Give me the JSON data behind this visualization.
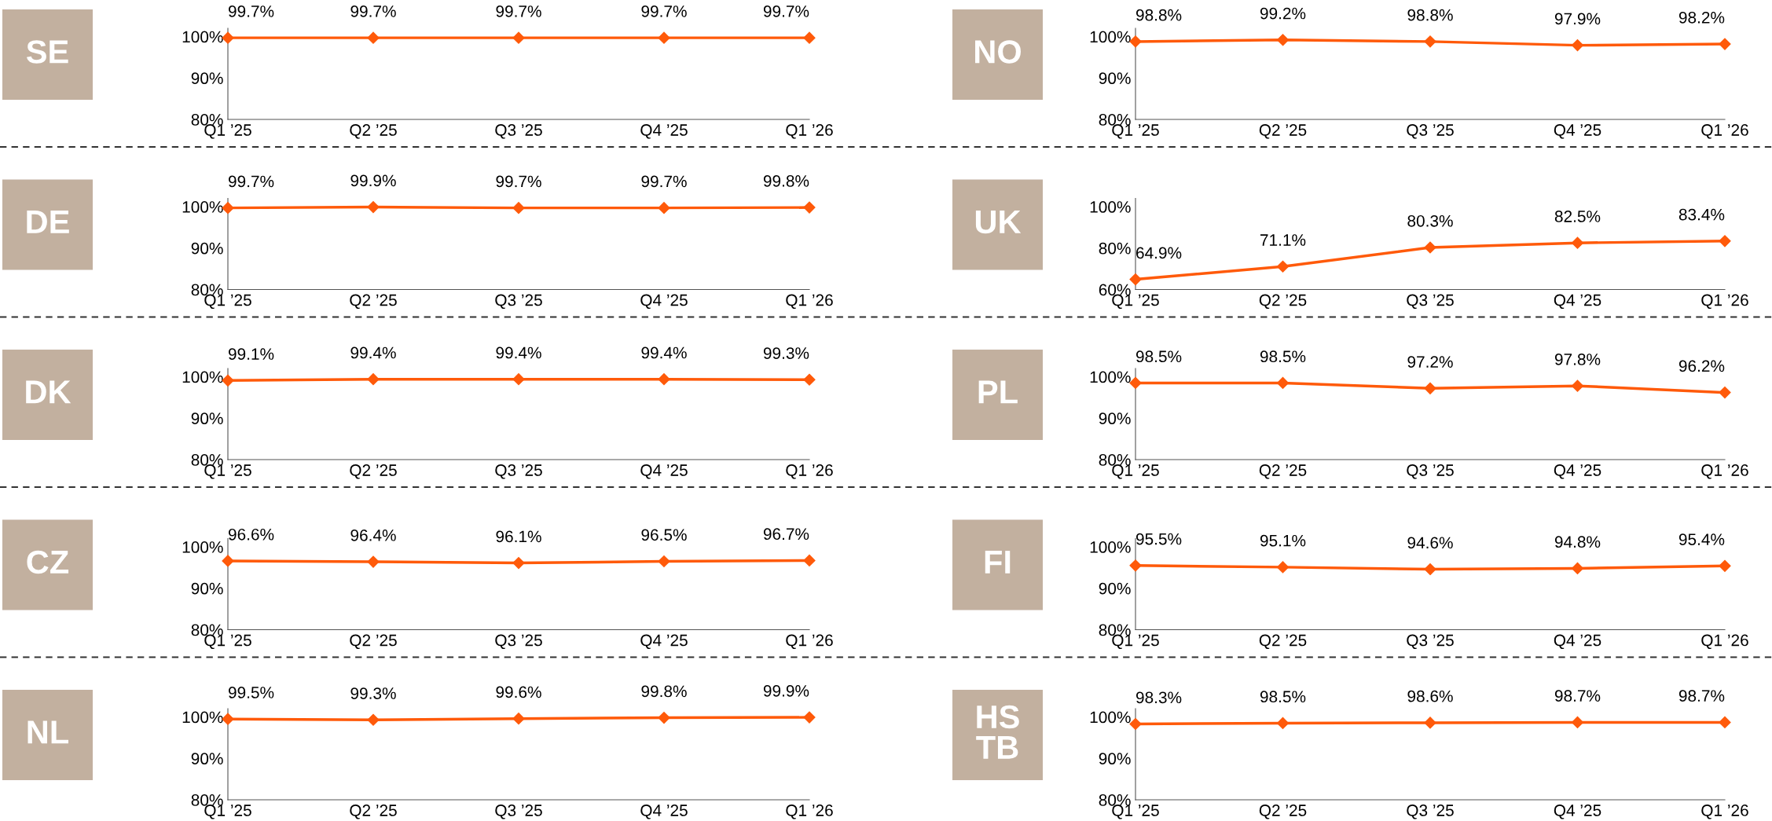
{
  "chart_data": [
    {
      "type": "line",
      "title": "SE",
      "categories": [
        "Q1 ’25",
        "Q2 ’25",
        "Q3 ’25",
        "Q4 ’25",
        "Q1 ’26"
      ],
      "series": [
        {
          "color": "#ff5a0a",
          "values": [
            99.7,
            99.7,
            99.7,
            99.7,
            99.7
          ],
          "value_labels": [
            "99.7%",
            "99.7%",
            "99.7%",
            "99.7%",
            "99.7%"
          ]
        }
      ],
      "ylim": [
        80,
        102
      ],
      "yticks": [
        {
          "value": 80,
          "label": "80%"
        },
        {
          "value": 90,
          "label": "90%"
        },
        {
          "value": 100,
          "label": "100%"
        }
      ],
      "marker": "diamond",
      "grid": false
    },
    {
      "type": "line",
      "title": "NO",
      "categories": [
        "Q1 ’25",
        "Q2 ’25",
        "Q3 ’25",
        "Q4 ’25",
        "Q1 ’26"
      ],
      "series": [
        {
          "color": "#ff5a0a",
          "values": [
            98.8,
            99.2,
            98.8,
            97.9,
            98.2
          ],
          "value_labels": [
            "98.8%",
            "99.2%",
            "98.8%",
            "97.9%",
            "98.2%"
          ]
        }
      ],
      "ylim": [
        80,
        102
      ],
      "yticks": [
        {
          "value": 80,
          "label": "80%"
        },
        {
          "value": 90,
          "label": "90%"
        },
        {
          "value": 100,
          "label": "100%"
        }
      ],
      "marker": "diamond",
      "grid": false
    },
    {
      "type": "line",
      "title": "DE",
      "categories": [
        "Q1 ’25",
        "Q2 ’25",
        "Q3 ’25",
        "Q4 ’25",
        "Q1 ’26"
      ],
      "series": [
        {
          "color": "#ff5a0a",
          "values": [
            99.7,
            99.9,
            99.7,
            99.7,
            99.8
          ],
          "value_labels": [
            "99.7%",
            "99.9%",
            "99.7%",
            "99.7%",
            "99.8%"
          ]
        }
      ],
      "ylim": [
        80,
        102
      ],
      "yticks": [
        {
          "value": 80,
          "label": "80%"
        },
        {
          "value": 90,
          "label": "90%"
        },
        {
          "value": 100,
          "label": "100%"
        }
      ],
      "marker": "diamond",
      "grid": false
    },
    {
      "type": "line",
      "title": "UK",
      "categories": [
        "Q1 ’25",
        "Q2 ’25",
        "Q3 ’25",
        "Q4 ’25",
        "Q1 ’26"
      ],
      "series": [
        {
          "color": "#ff5a0a",
          "values": [
            64.9,
            71.1,
            80.3,
            82.5,
            83.4
          ],
          "value_labels": [
            "64.9%",
            "71.1%",
            "80.3%",
            "82.5%",
            "83.4%"
          ]
        }
      ],
      "ylim": [
        60,
        104
      ],
      "yticks": [
        {
          "value": 60,
          "label": "60%"
        },
        {
          "value": 80,
          "label": "80%"
        },
        {
          "value": 100,
          "label": "100%"
        }
      ],
      "marker": "diamond",
      "grid": false
    },
    {
      "type": "line",
      "title": "DK",
      "categories": [
        "Q1 ’25",
        "Q2 ’25",
        "Q3 ’25",
        "Q4 ’25",
        "Q1 ’26"
      ],
      "series": [
        {
          "color": "#ff5a0a",
          "values": [
            99.1,
            99.4,
            99.4,
            99.4,
            99.3
          ],
          "value_labels": [
            "99.1%",
            "99.4%",
            "99.4%",
            "99.4%",
            "99.3%"
          ]
        }
      ],
      "ylim": [
        80,
        102
      ],
      "yticks": [
        {
          "value": 80,
          "label": "80%"
        },
        {
          "value": 90,
          "label": "90%"
        },
        {
          "value": 100,
          "label": "100%"
        }
      ],
      "marker": "diamond",
      "grid": false
    },
    {
      "type": "line",
      "title": "PL",
      "categories": [
        "Q1 ’25",
        "Q2 ’25",
        "Q3 ’25",
        "Q4 ’25",
        "Q1 ’26"
      ],
      "series": [
        {
          "color": "#ff5a0a",
          "values": [
            98.5,
            98.5,
            97.2,
            97.8,
            96.2
          ],
          "value_labels": [
            "98.5%",
            "98.5%",
            "97.2%",
            "97.8%",
            "96.2%"
          ]
        }
      ],
      "ylim": [
        80,
        102
      ],
      "yticks": [
        {
          "value": 80,
          "label": "80%"
        },
        {
          "value": 90,
          "label": "90%"
        },
        {
          "value": 100,
          "label": "100%"
        }
      ],
      "marker": "diamond",
      "grid": false
    },
    {
      "type": "line",
      "title": "CZ",
      "categories": [
        "Q1 ’25",
        "Q2 ’25",
        "Q3 ’25",
        "Q4 ’25",
        "Q1 ’26"
      ],
      "series": [
        {
          "color": "#ff5a0a",
          "values": [
            96.6,
            96.4,
            96.1,
            96.5,
            96.7
          ],
          "value_labels": [
            "96.6%",
            "96.4%",
            "96.1%",
            "96.5%",
            "96.7%"
          ]
        }
      ],
      "ylim": [
        80,
        102
      ],
      "yticks": [
        {
          "value": 80,
          "label": "80%"
        },
        {
          "value": 90,
          "label": "90%"
        },
        {
          "value": 100,
          "label": "100%"
        }
      ],
      "marker": "diamond",
      "grid": false
    },
    {
      "type": "line",
      "title": "FI",
      "categories": [
        "Q1 ’25",
        "Q2 ’25",
        "Q3 ’25",
        "Q4 ’25",
        "Q1 ’26"
      ],
      "series": [
        {
          "color": "#ff5a0a",
          "values": [
            95.5,
            95.1,
            94.6,
            94.8,
            95.4
          ],
          "value_labels": [
            "95.5%",
            "95.1%",
            "94.6%",
            "94.8%",
            "95.4%"
          ]
        }
      ],
      "ylim": [
        80,
        102
      ],
      "yticks": [
        {
          "value": 80,
          "label": "80%"
        },
        {
          "value": 90,
          "label": "90%"
        },
        {
          "value": 100,
          "label": "100%"
        }
      ],
      "marker": "diamond",
      "grid": false
    },
    {
      "type": "line",
      "title": "NL",
      "categories": [
        "Q1 ’25",
        "Q2 ’25",
        "Q3 ’25",
        "Q4 ’25",
        "Q1 ’26"
      ],
      "series": [
        {
          "color": "#ff5a0a",
          "values": [
            99.5,
            99.3,
            99.6,
            99.8,
            99.9
          ],
          "value_labels": [
            "99.5%",
            "99.3%",
            "99.6%",
            "99.8%",
            "99.9%"
          ]
        }
      ],
      "ylim": [
        80,
        102
      ],
      "yticks": [
        {
          "value": 80,
          "label": "80%"
        },
        {
          "value": 90,
          "label": "90%"
        },
        {
          "value": 100,
          "label": "100%"
        }
      ],
      "marker": "diamond",
      "grid": false
    },
    {
      "type": "line",
      "title": "HS\nTB",
      "categories": [
        "Q1 ’25",
        "Q2 ’25",
        "Q3 ’25",
        "Q4 ’25",
        "Q1 ’26"
      ],
      "series": [
        {
          "color": "#ff5a0a",
          "values": [
            98.3,
            98.5,
            98.6,
            98.7,
            98.7
          ],
          "value_labels": [
            "98.3%",
            "98.5%",
            "98.6%",
            "98.7%",
            "98.7%"
          ]
        }
      ],
      "ylim": [
        80,
        102
      ],
      "yticks": [
        {
          "value": 80,
          "label": "80%"
        },
        {
          "value": 90,
          "label": "90%"
        },
        {
          "value": 100,
          "label": "100%"
        }
      ],
      "marker": "diamond",
      "grid": false
    }
  ]
}
